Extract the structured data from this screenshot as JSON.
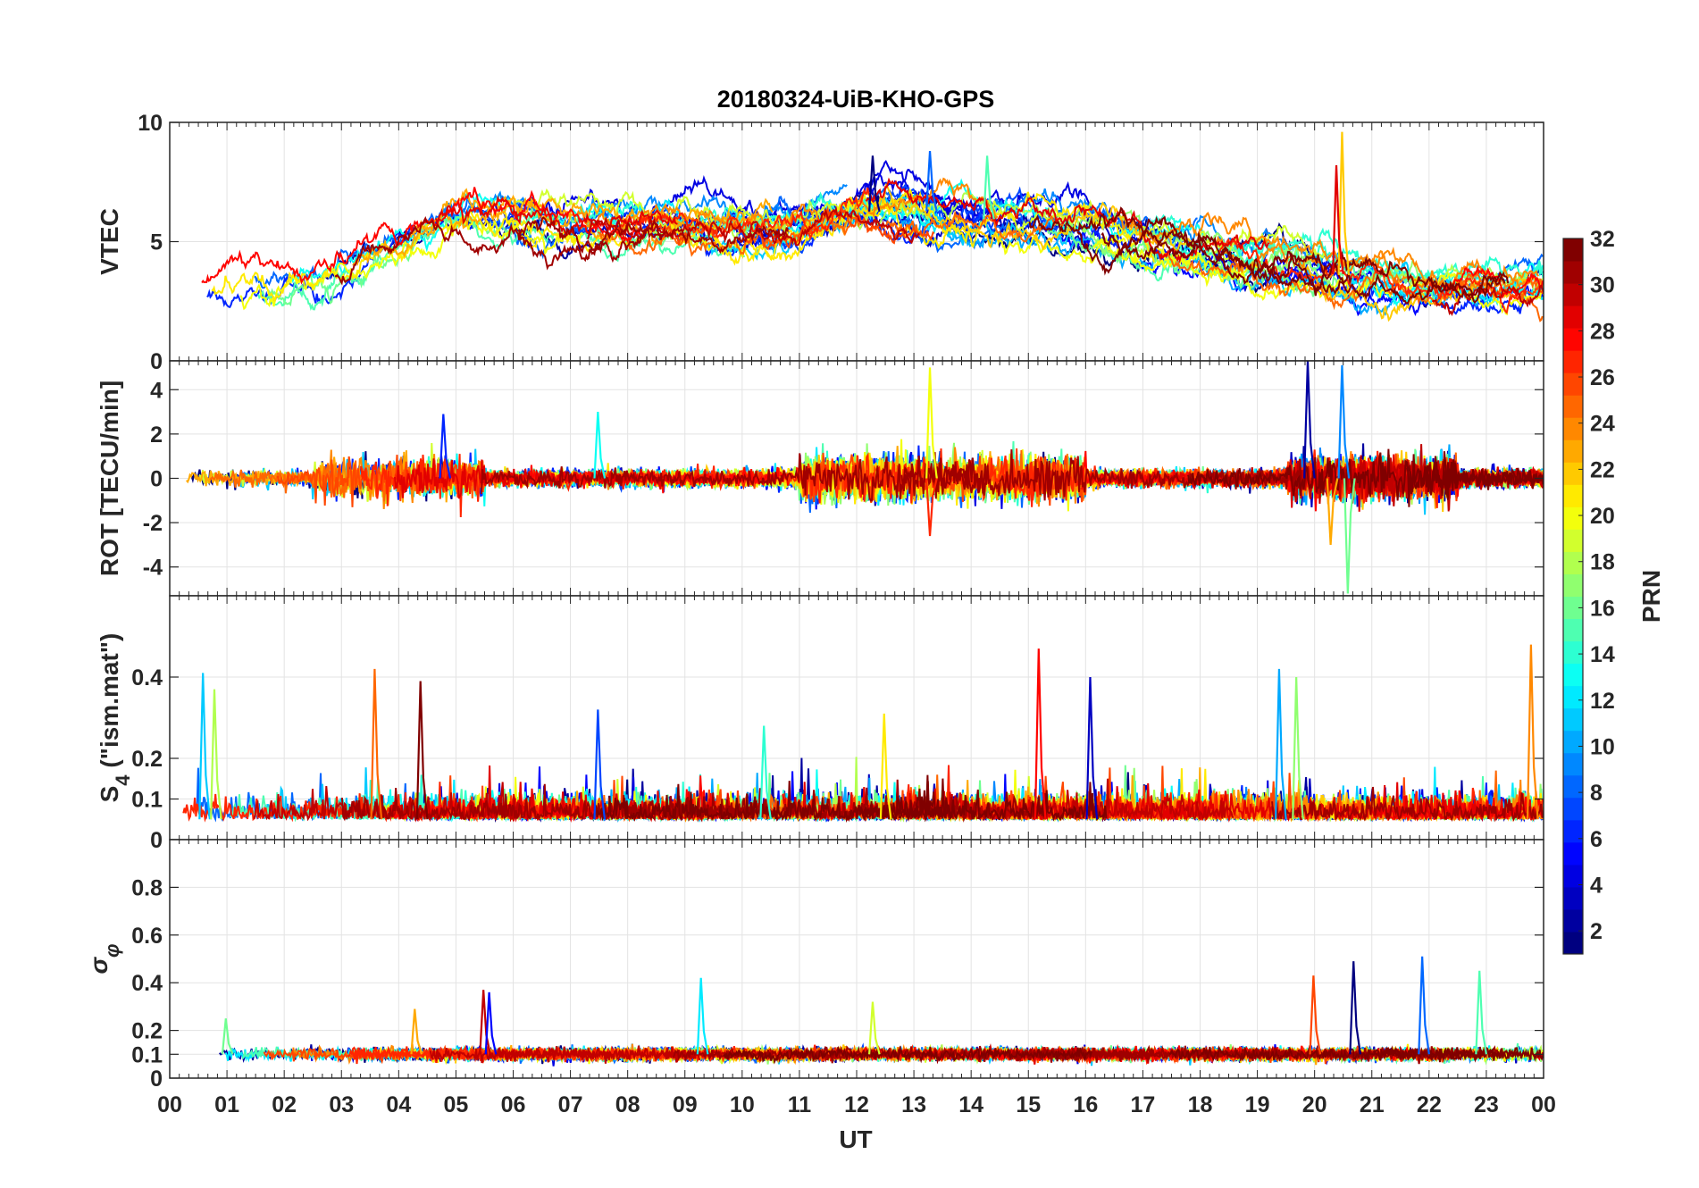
{
  "title": "20180324-UiB-KHO-GPS",
  "xlabel": "UT",
  "x_ticks": [
    "00",
    "01",
    "02",
    "03",
    "04",
    "05",
    "06",
    "07",
    "08",
    "09",
    "10",
    "11",
    "12",
    "13",
    "14",
    "15",
    "16",
    "17",
    "18",
    "19",
    "20",
    "21",
    "22",
    "23",
    "00"
  ],
  "colorbar": {
    "label": "PRN",
    "range": [
      1,
      32
    ],
    "ticks": [
      2,
      4,
      6,
      8,
      10,
      12,
      14,
      16,
      18,
      20,
      22,
      24,
      26,
      28,
      30,
      32
    ],
    "colormap": "jet"
  },
  "chart_data": [
    {
      "type": "line",
      "panel": "VTEC",
      "ylabel": "VTEC",
      "xlim": [
        0,
        24
      ],
      "ylim": [
        0,
        10
      ],
      "yticks": [
        0,
        5,
        10
      ],
      "grid": true,
      "baseline_trend": {
        "x": [
          0,
          1,
          2,
          3,
          4,
          5,
          6,
          7,
          8,
          9,
          10,
          11,
          12,
          13,
          14,
          15,
          16,
          17,
          18,
          19,
          20,
          21,
          22,
          23,
          24
        ],
        "y": [
          2.8,
          3.2,
          3.4,
          3.8,
          4.8,
          5.8,
          6.0,
          5.6,
          5.6,
          5.8,
          5.4,
          5.6,
          6.2,
          6.4,
          6.0,
          5.8,
          5.6,
          5.0,
          4.6,
          4.0,
          3.8,
          3.4,
          3.0,
          3.0,
          3.2
        ]
      },
      "notable_peaks": [
        {
          "x": 12.3,
          "y": 8.6
        },
        {
          "x": 13.3,
          "y": 8.8
        },
        {
          "x": 14.3,
          "y": 8.6
        },
        {
          "x": 20.5,
          "y": 9.6
        },
        {
          "x": 20.4,
          "y": 8.2
        }
      ]
    },
    {
      "type": "line",
      "panel": "ROT",
      "ylabel": "ROT [TECU/min]",
      "xlim": [
        0,
        24
      ],
      "ylim": [
        -5.3,
        5.3
      ],
      "yticks": [
        -4,
        -2,
        0,
        2,
        4
      ],
      "grid": true,
      "notable_peaks": [
        {
          "x": 4.8,
          "y": 2.9
        },
        {
          "x": 7.5,
          "y": 3.0
        },
        {
          "x": 13.3,
          "y": 5.0
        },
        {
          "x": 13.3,
          "y": -2.6
        },
        {
          "x": 19.9,
          "y": 5.3
        },
        {
          "x": 20.5,
          "y": 5.1
        },
        {
          "x": 20.6,
          "y": -5.2
        },
        {
          "x": 20.3,
          "y": -3.0
        }
      ]
    },
    {
      "type": "line",
      "panel": "S4",
      "ylabel": "S_4 (\"ism.mat\")",
      "ylabel_main": "S",
      "ylabel_sub": "4",
      "ylabel_rest": " (\"ism.mat\")",
      "xlim": [
        0,
        24
      ],
      "ylim": [
        0,
        0.6
      ],
      "yticks": [
        0,
        0.1,
        0.2,
        0.4
      ],
      "grid": true,
      "noise_floor": 0.05,
      "notable_peaks": [
        {
          "x": 0.6,
          "y": 0.41
        },
        {
          "x": 0.8,
          "y": 0.37
        },
        {
          "x": 3.6,
          "y": 0.42
        },
        {
          "x": 4.4,
          "y": 0.39
        },
        {
          "x": 7.5,
          "y": 0.32
        },
        {
          "x": 10.4,
          "y": 0.28
        },
        {
          "x": 12.5,
          "y": 0.31
        },
        {
          "x": 15.2,
          "y": 0.47
        },
        {
          "x": 16.1,
          "y": 0.4
        },
        {
          "x": 19.4,
          "y": 0.42
        },
        {
          "x": 19.7,
          "y": 0.4
        },
        {
          "x": 23.8,
          "y": 0.48
        }
      ]
    },
    {
      "type": "line",
      "panel": "sigma_phi",
      "ylabel": "σ_φ",
      "ylabel_main": "σ",
      "ylabel_sub": "φ",
      "xlim": [
        0,
        24
      ],
      "ylim": [
        0,
        1
      ],
      "yticks": [
        0,
        0.1,
        0.2,
        0.4,
        0.6,
        0.8
      ],
      "grid": true,
      "noise_floor": 0.1,
      "notable_peaks": [
        {
          "x": 1.0,
          "y": 0.25
        },
        {
          "x": 4.3,
          "y": 0.29
        },
        {
          "x": 5.5,
          "y": 0.37
        },
        {
          "x": 5.6,
          "y": 0.36
        },
        {
          "x": 9.3,
          "y": 0.42
        },
        {
          "x": 12.3,
          "y": 0.32
        },
        {
          "x": 20.0,
          "y": 0.43
        },
        {
          "x": 20.7,
          "y": 0.49
        },
        {
          "x": 21.9,
          "y": 0.51
        },
        {
          "x": 22.9,
          "y": 0.45
        }
      ]
    }
  ]
}
